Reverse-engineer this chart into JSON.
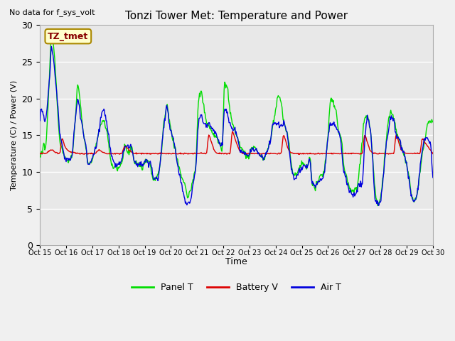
{
  "title": "Tonzi Tower Met: Temperature and Power",
  "xlabel": "Time",
  "ylabel": "Temperature (C) / Power (V)",
  "ylim": [
    0,
    30
  ],
  "panel_color": "#00dd00",
  "battery_color": "#dd0000",
  "air_color": "#0000dd",
  "plot_bg_color": "#e8e8e8",
  "fig_bg_color": "#f0f0f0",
  "top_left_note": "No data for f_sys_volt",
  "cursor_label": "TZ_tmet",
  "legend_entries": [
    "Panel T",
    "Battery V",
    "Air T"
  ],
  "line_width": 1.0,
  "yticks": [
    0,
    5,
    10,
    15,
    20,
    25,
    30
  ],
  "x_tick_labels": [
    "Oct 15",
    "Oct 16",
    "Oct 17",
    "Oct 18",
    "Oct 19",
    "Oct 20",
    "Oct 21",
    "Oct 22",
    "Oct 23",
    "Oct 24",
    "Oct 25",
    "Oct 26",
    "Oct 27",
    "Oct 28",
    "Oct 29",
    "Oct 30"
  ]
}
